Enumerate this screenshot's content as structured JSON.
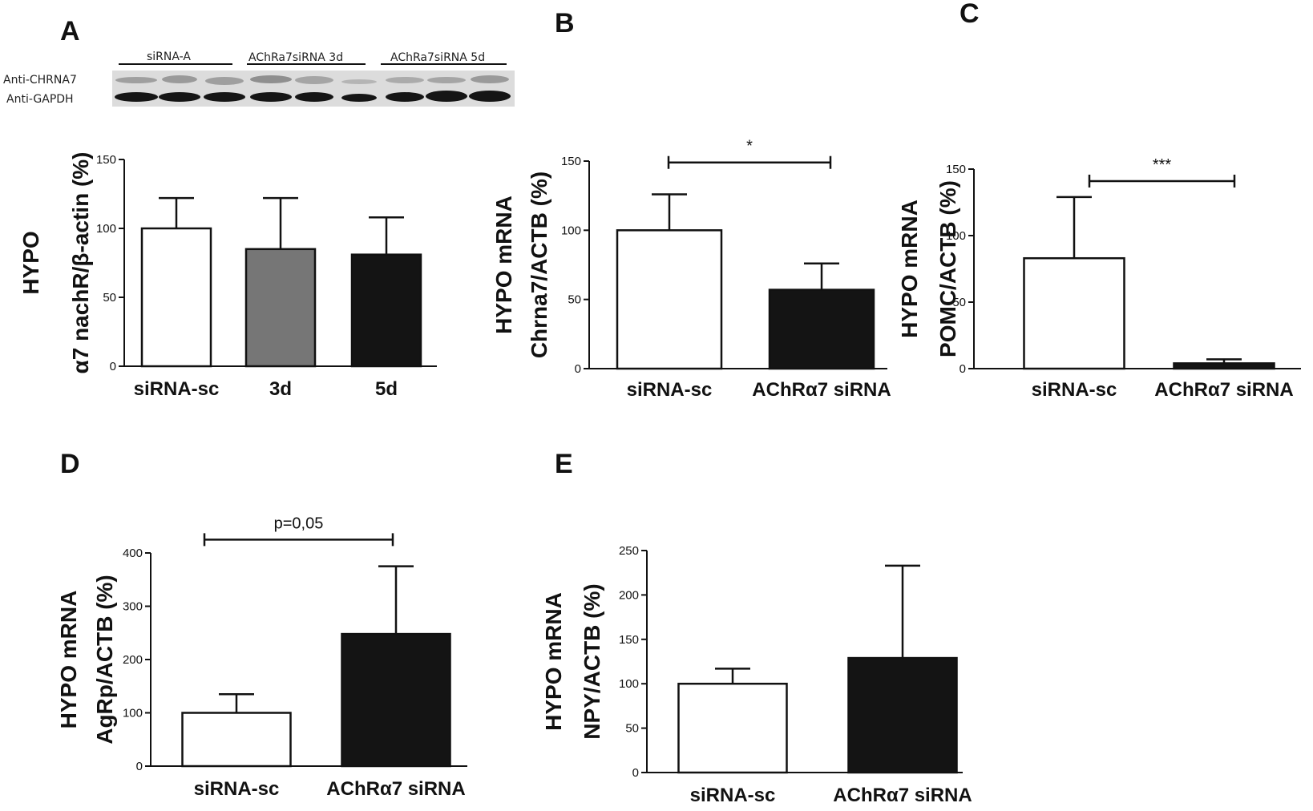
{
  "panels": {
    "A": "A",
    "B": "B",
    "C": "C",
    "D": "D",
    "E": "E"
  },
  "blot": {
    "groups": [
      "siRNA-A",
      "AChRa7siRNA 3d",
      "AChRa7siRNA 5d"
    ],
    "rows": [
      "Anti-CHRNA7",
      "Anti-GAPDH"
    ]
  },
  "chart_data": [
    {
      "panel": "A",
      "type": "bar",
      "categories": [
        "siRNA-sc",
        "3d",
        "5d"
      ],
      "values": [
        100,
        85,
        81
      ],
      "errors": [
        22,
        37,
        27
      ],
      "bar_colors": [
        "#ffffff",
        "#767676",
        "#141414"
      ],
      "ylabel_lines": [
        "HYPO",
        "α7 nachR/β-actin (%)"
      ],
      "ylim": [
        0,
        150
      ],
      "yticks": [
        "0",
        "50",
        "100",
        "150"
      ],
      "significance": null
    },
    {
      "panel": "B",
      "type": "bar",
      "categories": [
        "siRNA-sc",
        "AChRα7 siRNA"
      ],
      "values": [
        100,
        57
      ],
      "errors": [
        26,
        19
      ],
      "bar_colors": [
        "#ffffff",
        "#141414"
      ],
      "ylabel_lines": [
        "HYPO mRNA",
        "Chrna7/ACTB (%)"
      ],
      "ylim": [
        0,
        150
      ],
      "yticks": [
        "0",
        "50",
        "100",
        "150"
      ],
      "significance": {
        "label": "*",
        "y": 149
      }
    },
    {
      "panel": "C",
      "type": "bar",
      "categories": [
        "siRNA-sc",
        "AChRα7 siRNA"
      ],
      "values": [
        83,
        4
      ],
      "errors": [
        46,
        3
      ],
      "bar_colors": [
        "#ffffff",
        "#141414"
      ],
      "ylabel_lines": [
        "HYPO mRNA",
        "POMC/ACTB (%)"
      ],
      "ylim": [
        0,
        150
      ],
      "yticks": [
        "0",
        "50",
        "100",
        "150"
      ],
      "significance": {
        "label": "***",
        "y": 141
      }
    },
    {
      "panel": "D",
      "type": "bar",
      "categories": [
        "siRNA-sc",
        "AChRα7 siRNA"
      ],
      "values": [
        100,
        248
      ],
      "errors": [
        35,
        127
      ],
      "bar_colors": [
        "#ffffff",
        "#141414"
      ],
      "ylabel_lines": [
        "HYPO mRNA",
        "AgRp/ACTB (%)"
      ],
      "ylim": [
        0,
        400
      ],
      "yticks": [
        "0",
        "100",
        "200",
        "300",
        "400"
      ],
      "significance": {
        "label": "p=0,05",
        "y": 425
      }
    },
    {
      "panel": "E",
      "type": "bar",
      "categories": [
        "siRNA-sc",
        "AChRα7 siRNA"
      ],
      "values": [
        100,
        129
      ],
      "errors": [
        17,
        104
      ],
      "bar_colors": [
        "#ffffff",
        "#141414"
      ],
      "ylabel_lines": [
        "HYPO mRNA",
        "NPY/ACTB (%)"
      ],
      "ylim": [
        0,
        250
      ],
      "yticks": [
        "0",
        "50",
        "100",
        "150",
        "200",
        "250"
      ],
      "significance": null
    }
  ]
}
